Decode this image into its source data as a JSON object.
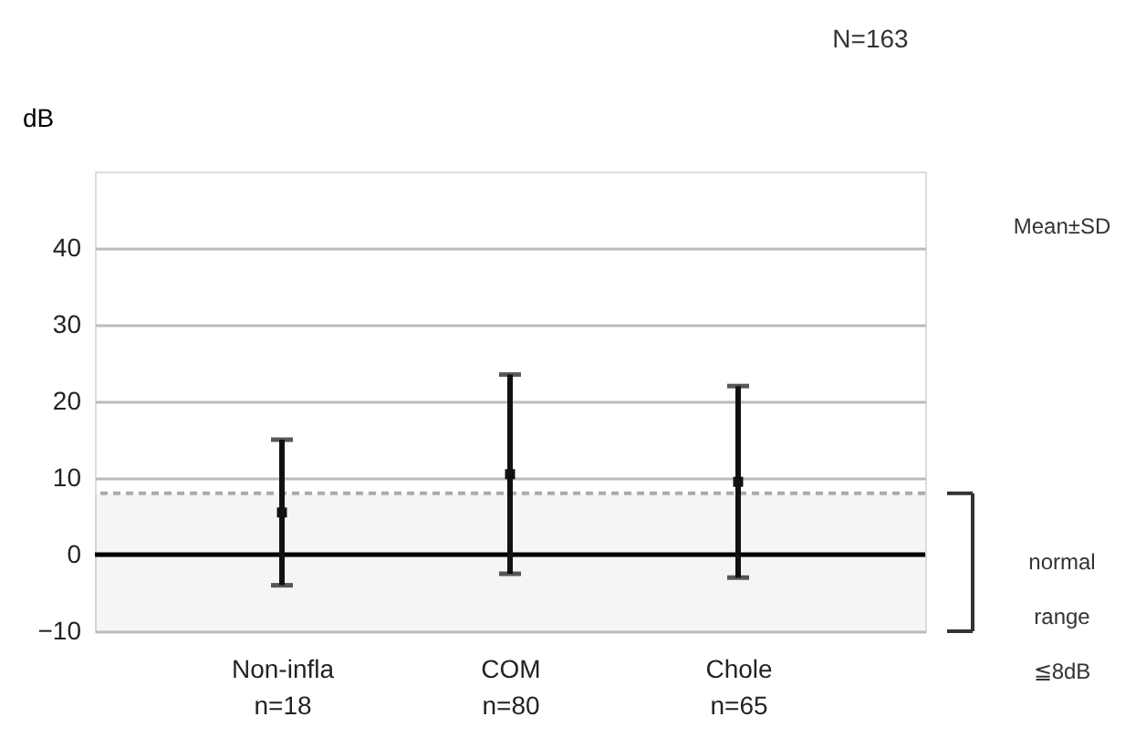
{
  "chart_data": {
    "type": "scatter",
    "ylabel": "dB",
    "categories": [
      "Non-infla\nn=18",
      "COM\nn=80",
      "Chole\nn=65"
    ],
    "values": [
      5.5,
      10.5,
      9.5
    ],
    "errors": [
      9.5,
      13,
      12.5
    ],
    "color": "#111111",
    "marker": "square",
    "ylim": [
      -10,
      50
    ],
    "yticks": [
      -10,
      0,
      10,
      20,
      30,
      40
    ],
    "grid": "y",
    "annotations": [
      "N=163",
      "Mean±SD"
    ],
    "ref_lines": [
      {
        "axis": "y",
        "value": 8,
        "color": "#aaaaaa",
        "line_style": "dashed"
      },
      {
        "axis": "y",
        "value": 0,
        "color": "#000000",
        "line_style": "solid"
      }
    ],
    "bands": [
      {
        "axis": "y",
        "from": -10,
        "to": 8,
        "label": "normal\nrange\n≦8dB",
        "color": "#333333"
      }
    ]
  }
}
